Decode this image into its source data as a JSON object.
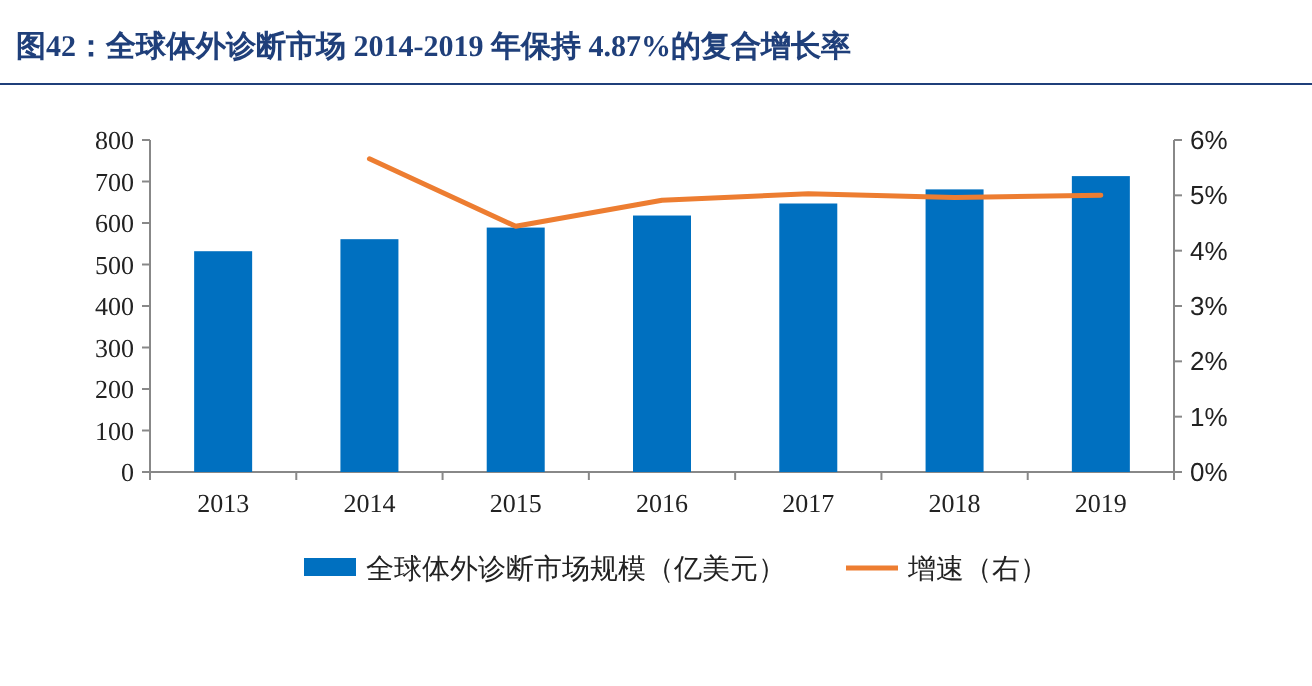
{
  "chart_data": {
    "type": "bar",
    "title": "图42：全球体外诊断市场 2014-2019 年保持 4.87%的复合增长率",
    "categories": [
      "2013",
      "2014",
      "2015",
      "2016",
      "2017",
      "2018",
      "2019"
    ],
    "series": [
      {
        "name": "全球体外诊断市场规模（亿美元）",
        "color": "#0070c0",
        "values": [
          532,
          561,
          589,
          618,
          647,
          681,
          713
        ]
      },
      {
        "name": "增速（右）",
        "type": "line",
        "axis": "y2",
        "color": "#ed7d31",
        "values": [
          null,
          5.66,
          4.44,
          4.91,
          5.03,
          4.96,
          5.0
        ]
      }
    ],
    "ylim": [
      0,
      800
    ],
    "yticks": [
      0,
      100,
      200,
      300,
      400,
      500,
      600,
      700,
      800
    ],
    "y2lim": [
      0,
      6
    ],
    "y2ticks": [
      {
        "value": 0,
        "label": "0%"
      },
      {
        "value": 1,
        "label": "1%"
      },
      {
        "value": 2,
        "label": "2%"
      },
      {
        "value": 3,
        "label": "3%"
      },
      {
        "value": 4,
        "label": "4%"
      },
      {
        "value": 5,
        "label": "5%"
      },
      {
        "value": 6,
        "label": "6%"
      }
    ],
    "legend": "bottom",
    "grid": false
  }
}
